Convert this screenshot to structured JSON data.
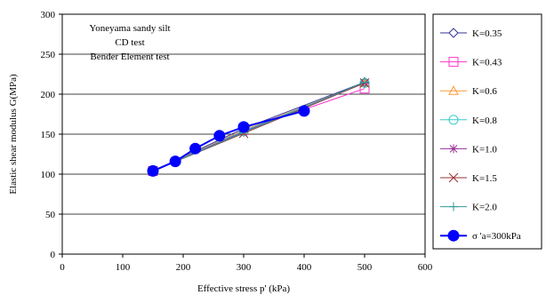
{
  "chart_data": {
    "type": "line",
    "xlabel": "Effective stress p' (kPa)",
    "ylabel": "Elastic shear modulus G(MPa)",
    "xlim": [
      0,
      600
    ],
    "ylim": [
      0,
      300
    ],
    "xticks": [
      "0",
      "100",
      "200",
      "300",
      "400",
      "500",
      "600"
    ],
    "yticks": [
      "0",
      "50",
      "100",
      "150",
      "200",
      "250",
      "300"
    ],
    "grid": "horizontal",
    "legend_position": "right",
    "annotations": [
      "Yoneyama sandy silt",
      "CD test",
      "Bender Element test"
    ],
    "series": [
      {
        "name": "K=0.35",
        "color": "#33339a",
        "marker": "diamond",
        "points": [
          [
            150,
            104
          ],
          [
            300,
            157
          ],
          [
            500,
            215
          ]
        ]
      },
      {
        "name": "K=0.43",
        "color": "#ff33cc",
        "marker": "square",
        "points": [
          [
            150,
            104
          ],
          [
            300,
            155
          ],
          [
            500,
            207
          ]
        ]
      },
      {
        "name": "K=0.6",
        "color": "#ff9933",
        "marker": "triangle",
        "points": [
          [
            150,
            104
          ],
          [
            300,
            155
          ],
          [
            500,
            214
          ]
        ]
      },
      {
        "name": "K=0.8",
        "color": "#33cccc",
        "marker": "circle-open",
        "points": [
          [
            150,
            104
          ],
          [
            300,
            154
          ],
          [
            500,
            214
          ]
        ]
      },
      {
        "name": "K=1.0",
        "color": "#993399",
        "marker": "star",
        "points": [
          [
            150,
            104
          ],
          [
            300,
            153
          ],
          [
            500,
            214
          ]
        ]
      },
      {
        "name": "K=1.5",
        "color": "#993333",
        "marker": "x",
        "points": [
          [
            150,
            104
          ],
          [
            300,
            151
          ],
          [
            500,
            214
          ]
        ]
      },
      {
        "name": "K=2.0",
        "color": "#339999",
        "marker": "plus",
        "points": [
          [
            150,
            104
          ],
          [
            300,
            152
          ],
          [
            500,
            215
          ]
        ]
      },
      {
        "name": "σ 'a=300kPa",
        "color": "#0000ff",
        "marker": "circle-filled",
        "points": [
          [
            150,
            104
          ],
          [
            187,
            116
          ],
          [
            220,
            132
          ],
          [
            260,
            148
          ],
          [
            300,
            159
          ],
          [
            400,
            179
          ]
        ]
      }
    ]
  }
}
